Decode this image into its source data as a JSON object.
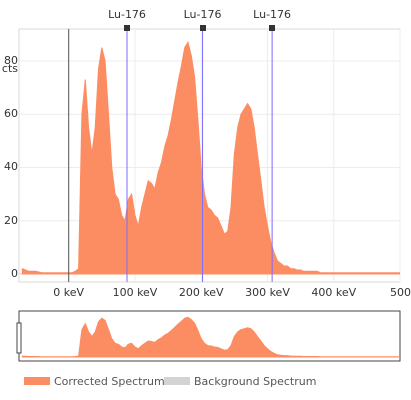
{
  "markers": [
    {
      "label": "Lu-176",
      "energy_kev": 88
    },
    {
      "label": "Lu-176",
      "energy_kev": 202
    },
    {
      "label": "Lu-176",
      "energy_kev": 307
    }
  ],
  "y_axis": {
    "unit_label": "cts",
    "ticks": [
      {
        "label": "0",
        "value": 0
      },
      {
        "label": "20",
        "value": 20
      },
      {
        "label": "40",
        "value": 40
      },
      {
        "label": "60",
        "value": 60
      },
      {
        "label": "80",
        "value": 80
      }
    ]
  },
  "x_axis": {
    "ticks": [
      {
        "label": "0 keV",
        "value": 0
      },
      {
        "label": "100 keV",
        "value": 100
      },
      {
        "label": "200 keV",
        "value": 200
      },
      {
        "label": "300 keV",
        "value": 300
      },
      {
        "label": "400 keV",
        "value": 400
      },
      {
        "label": "500",
        "value": 500
      }
    ]
  },
  "colors": {
    "spectrum": "#fc8d62",
    "background": "#d3d3d3",
    "marker_line": "#7b6cff",
    "grid": "#ececec"
  },
  "legend": [
    {
      "label": "Corrected Spectrum",
      "color": "#fc8d62"
    },
    {
      "label": "Background Spectrum",
      "color": "#d3d3d3"
    }
  ],
  "chart_data": {
    "type": "area",
    "x_unit": "keV",
    "y_unit": "cts",
    "xlim": [
      -75,
      500
    ],
    "ylim": [
      -3,
      92
    ],
    "series": [
      {
        "name": "Corrected Spectrum",
        "x": [
          -70,
          -60,
          -50,
          -40,
          -30,
          -20,
          -10,
          0,
          5,
          10,
          15,
          20,
          25,
          30,
          35,
          40,
          45,
          50,
          55,
          60,
          65,
          70,
          75,
          80,
          85,
          90,
          95,
          100,
          105,
          110,
          115,
          120,
          125,
          130,
          135,
          140,
          145,
          150,
          155,
          160,
          165,
          170,
          175,
          180,
          185,
          190,
          195,
          200,
          205,
          210,
          215,
          220,
          225,
          230,
          235,
          240,
          245,
          250,
          255,
          260,
          265,
          270,
          275,
          280,
          285,
          290,
          295,
          300,
          305,
          310,
          315,
          320,
          325,
          330,
          335,
          340,
          345,
          350,
          355,
          360,
          365,
          370,
          375,
          380,
          385,
          390,
          400,
          420,
          440,
          460,
          480,
          500
        ],
        "y": [
          2,
          1,
          1,
          0.5,
          0.5,
          0.5,
          0.5,
          0.5,
          0.5,
          1,
          2,
          60,
          73,
          55,
          45,
          55,
          77,
          85,
          80,
          60,
          40,
          30,
          28,
          22,
          20,
          28,
          30,
          22,
          18,
          25,
          30,
          35,
          34,
          32,
          38,
          42,
          48,
          52,
          58,
          65,
          72,
          78,
          85,
          87,
          82,
          74,
          58,
          40,
          30,
          25,
          24,
          22,
          21,
          18,
          15,
          16,
          25,
          45,
          55,
          60,
          62,
          64,
          62,
          55,
          45,
          35,
          25,
          18,
          12,
          8,
          5,
          4,
          3,
          3,
          2,
          2,
          1.5,
          1.5,
          1,
          1,
          1,
          1,
          1,
          0.5,
          0.5,
          0.5,
          0.5,
          0.5,
          0.5,
          0.5,
          0.5,
          0.5
        ]
      },
      {
        "name": "Background Spectrum",
        "x": [
          -75,
          500
        ],
        "y": [
          0,
          0
        ]
      }
    ]
  }
}
